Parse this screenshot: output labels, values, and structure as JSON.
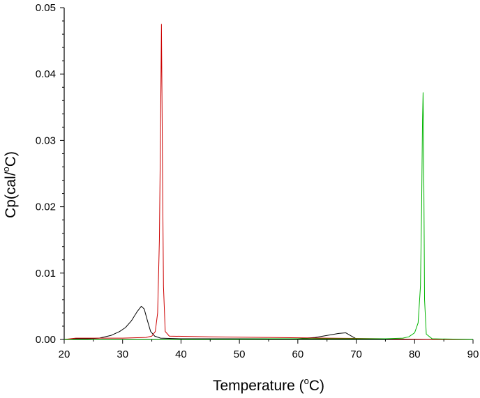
{
  "chart_data": {
    "type": "line",
    "xlabel_main": "Temperature (",
    "xlabel_sup": "o",
    "xlabel_tail": "C)",
    "ylabel_main": "Cp(cal/",
    "ylabel_sup": "o",
    "ylabel_tail": "C)",
    "xlim": [
      20,
      90
    ],
    "ylim": [
      0,
      0.05
    ],
    "x_ticks": [
      20,
      30,
      40,
      50,
      60,
      70,
      80,
      90
    ],
    "x_tick_labels": [
      "20",
      "30",
      "40",
      "50",
      "60",
      "70",
      "80",
      "90"
    ],
    "y_ticks": [
      0,
      0.01,
      0.02,
      0.03,
      0.04,
      0.05
    ],
    "y_tick_labels": [
      "0.00",
      "0.01",
      "0.02",
      "0.03",
      "0.04",
      "0.05"
    ],
    "grid": false,
    "series": [
      {
        "color": "#000000",
        "points": [
          [
            20.0,
            0.0
          ],
          [
            22.0,
            0.0001
          ],
          [
            24.0,
            0.0001
          ],
          [
            26.0,
            0.0002
          ],
          [
            28.0,
            0.0006
          ],
          [
            29.5,
            0.0012
          ],
          [
            30.5,
            0.0018
          ],
          [
            31.5,
            0.0028
          ],
          [
            32.5,
            0.0042
          ],
          [
            33.2,
            0.005
          ],
          [
            33.7,
            0.0046
          ],
          [
            34.2,
            0.003
          ],
          [
            34.8,
            0.0012
          ],
          [
            35.5,
            0.0005
          ],
          [
            36.5,
            0.0002
          ],
          [
            40.0,
            0.0001
          ],
          [
            50.0,
            0.0001
          ],
          [
            60.0,
            0.0001
          ],
          [
            63.0,
            0.0003
          ],
          [
            65.0,
            0.0006
          ],
          [
            67.0,
            0.0009
          ],
          [
            68.2,
            0.001
          ],
          [
            69.0,
            0.0006
          ],
          [
            70.0,
            0.0001
          ],
          [
            75.0,
            0.0
          ],
          [
            90.0,
            0.0
          ]
        ]
      },
      {
        "color": "#cc0000",
        "points": [
          [
            20.0,
            0.0
          ],
          [
            22.0,
            0.0002
          ],
          [
            25.0,
            0.0002
          ],
          [
            30.0,
            0.0002
          ],
          [
            34.0,
            0.0003
          ],
          [
            35.0,
            0.0005
          ],
          [
            35.6,
            0.0012
          ],
          [
            36.0,
            0.004
          ],
          [
            36.3,
            0.015
          ],
          [
            36.5,
            0.032
          ],
          [
            36.65,
            0.0475
          ],
          [
            36.8,
            0.03
          ],
          [
            37.0,
            0.008
          ],
          [
            37.3,
            0.0012
          ],
          [
            38.0,
            0.0005
          ],
          [
            45.0,
            0.0004
          ],
          [
            55.0,
            0.0003
          ],
          [
            65.0,
            0.0002
          ],
          [
            75.0,
            0.0001
          ],
          [
            82.0,
            0.0
          ],
          [
            90.0,
            0.0
          ]
        ]
      },
      {
        "color": "#00b400",
        "points": [
          [
            20.0,
            0.0
          ],
          [
            40.0,
            0.0
          ],
          [
            55.0,
            0.0001
          ],
          [
            65.0,
            0.0001
          ],
          [
            75.0,
            0.0001
          ],
          [
            78.0,
            0.0002
          ],
          [
            79.0,
            0.0004
          ],
          [
            80.0,
            0.001
          ],
          [
            80.6,
            0.0025
          ],
          [
            81.0,
            0.008
          ],
          [
            81.2,
            0.02
          ],
          [
            81.35,
            0.033
          ],
          [
            81.45,
            0.0372
          ],
          [
            81.55,
            0.028
          ],
          [
            81.7,
            0.006
          ],
          [
            82.0,
            0.0008
          ],
          [
            83.0,
            0.0001
          ],
          [
            90.0,
            0.0
          ]
        ]
      }
    ]
  }
}
